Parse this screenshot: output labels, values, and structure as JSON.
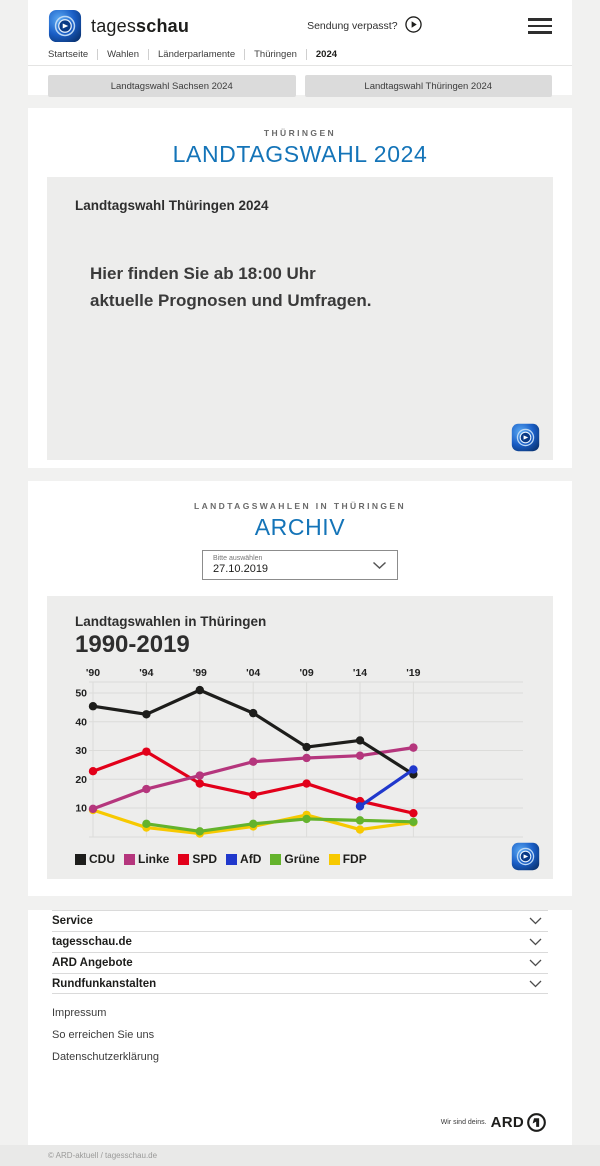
{
  "header": {
    "brand_regular": "tages",
    "brand_bold": "schau",
    "missed_broadcast": "Sendung verpasst?",
    "breadcrumb": [
      "Startseite",
      "Wahlen",
      "Länderparlamente",
      "Thüringen",
      "2024"
    ],
    "quick_links": [
      "Landtagswahl Sachsen 2024",
      "Landtagswahl Thüringen 2024"
    ]
  },
  "election_section": {
    "eyebrow": "THÜRINGEN",
    "title": "LANDTAGSWAHL 2024",
    "card": {
      "heading": "Landtagswahl Thüringen 2024",
      "message_line1": "Hier finden Sie ab 18:00 Uhr",
      "message_line2": "aktuelle Prognosen und Umfragen."
    }
  },
  "archive_section": {
    "eyebrow": "LANDTAGSWAHLEN IN THÜRINGEN",
    "title": "ARCHIV",
    "select": {
      "label": "Bitte auswählen",
      "value": "27.10.2019"
    }
  },
  "chart_data": {
    "type": "line",
    "title": "Landtagswahlen in Thüringen",
    "subtitle": "1990-2019",
    "x": [
      "'90",
      "'94",
      "'99",
      "'04",
      "'09",
      "'14",
      "'19"
    ],
    "yticks": [
      10,
      20,
      30,
      40,
      50
    ],
    "ylim": [
      0,
      54
    ],
    "grid": true,
    "legend_position": "bottom",
    "series": [
      {
        "name": "CDU",
        "color": "#1d1d1b",
        "values": [
          45.4,
          42.6,
          51.0,
          43.0,
          31.2,
          33.5,
          21.7
        ]
      },
      {
        "name": "Linke",
        "color": "#b5367d",
        "values": [
          9.7,
          16.6,
          21.3,
          26.1,
          27.4,
          28.2,
          31.0
        ]
      },
      {
        "name": "SPD",
        "color": "#e2001a",
        "values": [
          22.8,
          29.6,
          18.5,
          14.5,
          18.5,
          12.4,
          8.2
        ]
      },
      {
        "name": "AfD",
        "color": "#2038cc",
        "values": [
          null,
          null,
          null,
          null,
          null,
          10.6,
          23.4
        ]
      },
      {
        "name": "Grüne",
        "color": "#64b32c",
        "values": [
          null,
          4.5,
          1.9,
          4.5,
          6.2,
          5.7,
          5.2
        ]
      },
      {
        "name": "FDP",
        "color": "#f7c900",
        "values": [
          9.3,
          3.2,
          1.1,
          3.6,
          7.6,
          2.5,
          5.0
        ]
      }
    ]
  },
  "footer": {
    "accordions": [
      "Service",
      "tagesschau.de",
      "ARD Angebote",
      "Rundfunkanstalten"
    ],
    "links": [
      "Impressum",
      "So erreichen Sie uns",
      "Datenschutzerklärung"
    ],
    "ard_claim": "Wir sind deins.",
    "ard_brand": "ARD",
    "copyright": "© ARD-aktuell / tagesschau.de"
  },
  "colors": {
    "accent_blue": "#1474b8",
    "page_background": "#f1f1f0",
    "card_background": "#ededec"
  }
}
